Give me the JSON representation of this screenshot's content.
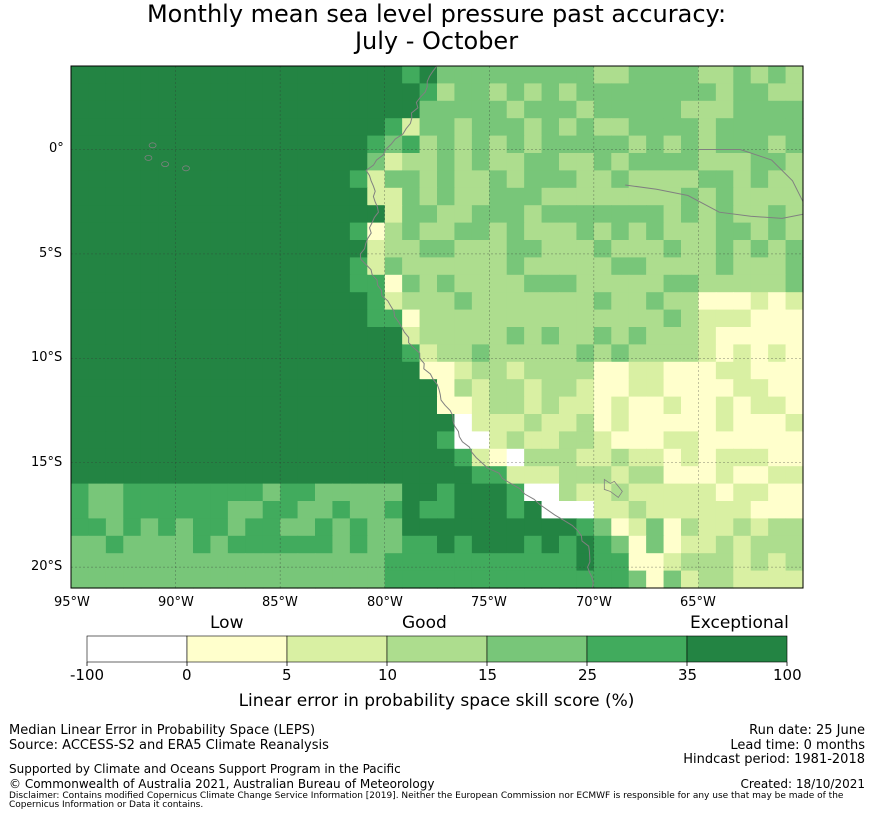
{
  "title_line1": "Monthly mean sea level pressure past accuracy:",
  "title_line2": "July - October",
  "map": {
    "lat_labels": [
      "0°",
      "5°S",
      "10°S",
      "15°S",
      "20°S"
    ],
    "lon_labels": [
      "95°W",
      "90°W",
      "85°W",
      "80°W",
      "75°W",
      "70°W",
      "65°W"
    ]
  },
  "legend": {
    "category_labels": [
      "Low",
      "Good",
      "Exceptional"
    ],
    "ticks": [
      "-100",
      "0",
      "5",
      "10",
      "15",
      "25",
      "35",
      "100"
    ],
    "colors": [
      "#ffffff",
      "#ffffcc",
      "#d9f0a3",
      "#addd8e",
      "#78c679",
      "#41ab5d",
      "#238443"
    ],
    "xlabel": "Linear error in probability space skill score (%)"
  },
  "chart_data": {
    "type": "heatmap",
    "title": "Monthly mean sea level pressure past accuracy: July - October",
    "xlabel": "",
    "ylabel": "",
    "x_range": [
      "95°W",
      "60°W"
    ],
    "y_range": [
      "4°N",
      "21°S"
    ],
    "colorbar": {
      "label": "Linear error in probability space skill score (%)",
      "bins": [
        {
          "range": [
            -100,
            0
          ],
          "color": "#ffffff"
        },
        {
          "range": [
            0,
            5
          ],
          "color": "#ffffcc"
        },
        {
          "range": [
            5,
            10
          ],
          "color": "#d9f0a3"
        },
        {
          "range": [
            10,
            15
          ],
          "color": "#addd8e"
        },
        {
          "range": [
            15,
            25
          ],
          "color": "#78c679"
        },
        {
          "range": [
            25,
            35
          ],
          "color": "#41ab5d"
        },
        {
          "range": [
            35,
            100
          ],
          "color": "#238443"
        }
      ],
      "categories": [
        "Low",
        "Good",
        "Exceptional"
      ]
    },
    "regions": [
      {
        "area": "Open Pacific Ocean (west of ~77°W)",
        "range": [
          35,
          100
        ]
      },
      {
        "area": "South-west Pacific (south of ~16°S, west of ~78°W)",
        "range": [
          15,
          35
        ]
      },
      {
        "area": "Coastal Peru / Ecuador strip",
        "range": [
          0,
          15
        ]
      },
      {
        "area": "Northern South America (Colombia / Amazon)",
        "range": [
          10,
          25
        ]
      },
      {
        "area": "Southern Peru / Bolivian Altiplano",
        "range": [
          -100,
          5
        ]
      }
    ]
  },
  "footer": {
    "left1": "Median Linear Error in Probability Space (LEPS)",
    "left2": "Source: ACCESS-S2 and ERA5 Climate Reanalysis",
    "left3": "Supported by Climate and Oceans Support Program in the Pacific",
    "left4": "© Commonwealth of Australia 2021, Australian Bureau of Meteorology",
    "right1": "Run date: 25 June",
    "right2": "Lead time: 0 months",
    "right3": "Hindcast period: 1981-2018",
    "right4": "Created: 18/10/2021",
    "disclaimer1": "Disclaimer: Contains modified Copernicus Climate Change Service Information [2019]. Neither the European Commission nor ECMWF is responsible for any use that may be made of the",
    "disclaimer2": "Copernicus Information or Data it contains."
  }
}
